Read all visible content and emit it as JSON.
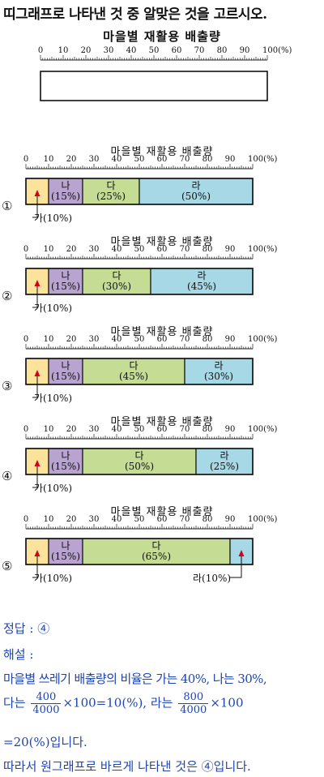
{
  "question": "띠그래프로 나타낸 것 중 알맞은 것을 고르시오.",
  "chart_title": "마을별 재활용 배출량",
  "axis_ticks": [
    "0",
    "10",
    "20",
    "30",
    "40",
    "50",
    "60",
    "70",
    "80",
    "90",
    "100(%)"
  ],
  "chart_data": [
    {
      "type": "bar",
      "title": "마을별 재활용 배출량",
      "categories": [],
      "values": [],
      "xlim": [
        0,
        100
      ]
    },
    {
      "type": "bar",
      "option": "①",
      "title": "마을별 재활용 배출량",
      "categories": [
        "가",
        "나",
        "다",
        "라"
      ],
      "values": [
        10,
        15,
        25,
        50
      ],
      "xlim": [
        0,
        100
      ]
    },
    {
      "type": "bar",
      "option": "②",
      "title": "마을별 재활용 배출량",
      "categories": [
        "가",
        "나",
        "다",
        "라"
      ],
      "values": [
        10,
        15,
        30,
        45
      ],
      "xlim": [
        0,
        100
      ]
    },
    {
      "type": "bar",
      "option": "③",
      "title": "마을별 재활용 배출량",
      "categories": [
        "가",
        "나",
        "다",
        "라"
      ],
      "values": [
        10,
        15,
        45,
        30
      ],
      "xlim": [
        0,
        100
      ]
    },
    {
      "type": "bar",
      "option": "④",
      "title": "마을별 재활용 배출량",
      "categories": [
        "가",
        "나",
        "다",
        "라"
      ],
      "values": [
        10,
        15,
        50,
        25
      ],
      "xlim": [
        0,
        100
      ]
    },
    {
      "type": "bar",
      "option": "⑤",
      "title": "마을별 재활용 배출량",
      "categories": [
        "가",
        "나",
        "다",
        "라"
      ],
      "values": [
        10,
        15,
        65,
        10
      ],
      "xlim": [
        0,
        100
      ]
    }
  ],
  "options": [
    {
      "num": "①",
      "segments": [
        {
          "label": "나",
          "pct": "(15%)"
        },
        {
          "label": "다",
          "pct": "(25%)"
        },
        {
          "label": "라",
          "pct": "(50%)"
        }
      ],
      "callout_left": "가(10%)"
    },
    {
      "num": "②",
      "segments": [
        {
          "label": "나",
          "pct": "(15%)"
        },
        {
          "label": "다",
          "pct": "(30%)"
        },
        {
          "label": "라",
          "pct": "(45%)"
        }
      ],
      "callout_left": "가(10%)"
    },
    {
      "num": "③",
      "segments": [
        {
          "label": "나",
          "pct": "(15%)"
        },
        {
          "label": "다",
          "pct": "(45%)"
        },
        {
          "label": "라",
          "pct": "(30%)"
        }
      ],
      "callout_left": "가(10%)"
    },
    {
      "num": "④",
      "segments": [
        {
          "label": "나",
          "pct": "(15%)"
        },
        {
          "label": "다",
          "pct": "(50%)"
        },
        {
          "label": "라",
          "pct": "(25%)"
        }
      ],
      "callout_left": "가(10%)"
    },
    {
      "num": "⑤",
      "segments": [
        {
          "label": "나",
          "pct": "(15%)"
        },
        {
          "label": "다",
          "pct": "(65%)"
        }
      ],
      "callout_left": "가(10%)",
      "callout_right": "라(10%)"
    }
  ],
  "colors": {
    "ga": "#fbe39b",
    "na": "#b9a3d0",
    "da": "#c4dc94",
    "ra": "#a7d8e6",
    "arrow": "#d4001e",
    "answer": "#1f45b0"
  },
  "answer": {
    "line1": "정답 : ④",
    "line2": "해설 :",
    "line3": "마을별 쓰레기 배출량의 비율은 가는 40%, 나는 30%,",
    "line4_a": "다는",
    "line4_f1_num": "400",
    "line4_f1_den": "4000",
    "line4_b": "×100=10(%), 라는",
    "line4_f2_num": "800",
    "line4_f2_den": "4000",
    "line4_c": "×100",
    "line5": "=20(%)입니다.",
    "line6": "따라서 원그래프로 바르게 나타낸 것은 ④입니다."
  }
}
